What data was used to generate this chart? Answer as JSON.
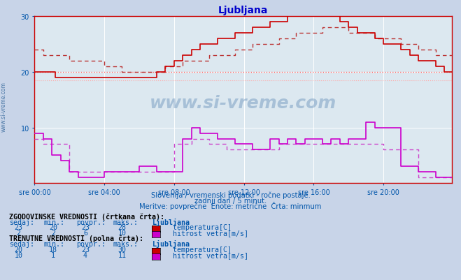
{
  "title": "Ljubljana",
  "bg_color": "#c8d4e8",
  "plot_bg_color": "#dce8f0",
  "grid_color": "#ffffff",
  "title_color": "#0000cc",
  "axis_color": "#cc0000",
  "text_color": "#0055aa",
  "ylim": [
    0,
    30
  ],
  "yticks": [
    10,
    20,
    30
  ],
  "xlim": [
    0,
    287
  ],
  "xtick_labels": [
    "sre 00:00",
    "sre 04:00",
    "sre 08:00",
    "sre 12:00",
    "sre 16:00",
    "sre 20:00"
  ],
  "xtick_positions": [
    0,
    48,
    96,
    144,
    192,
    240
  ],
  "subtitle1": "Slovenija / vremenski podatki - ročne postaje.",
  "subtitle2": "zadnji dan / 5 minut.",
  "subtitle3": "Meritve: povprečne  Enote: metrične  Črta: minmum",
  "watermark": "www.si-vreme.com",
  "temp_solid_color": "#cc0000",
  "temp_dashed_color": "#bb3333",
  "wind_solid_color": "#cc00cc",
  "wind_dashed_color": "#cc44cc",
  "hline1_color": "#ff6666",
  "hline2_color": "#ffaaaa",
  "hline1_y": 20.0,
  "hline2_y": 18.5,
  "table_text_color": "#0055aa",
  "stat_header1": "ZGODOVINSKE VREDNOSTI (črtkana črta):",
  "stat_header2": "TRENUTNE VREDNOSTI (polna črta):",
  "hist_temp": [
    23,
    20,
    23,
    28
  ],
  "hist_wind": [
    2,
    2,
    6,
    10
  ],
  "curr_temp": [
    20,
    18,
    23,
    30
  ],
  "curr_wind": [
    10,
    1,
    4,
    11
  ]
}
